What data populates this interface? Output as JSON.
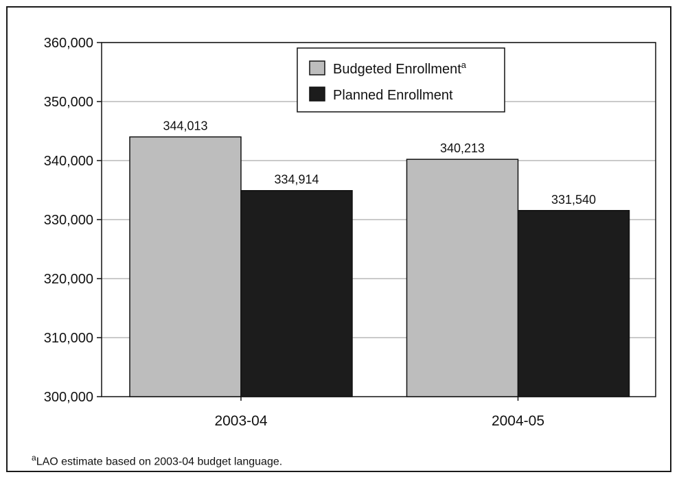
{
  "chart_data": {
    "type": "bar",
    "categories": [
      "2003-04",
      "2004-05"
    ],
    "series": [
      {
        "name": "Budgeted Enrollment",
        "name_superscript": "a",
        "values": [
          344013,
          340213
        ],
        "labels": [
          "344,013",
          "340,213"
        ],
        "color": "#bdbdbd"
      },
      {
        "name": "Planned Enrollment",
        "values": [
          334914,
          331540
        ],
        "labels": [
          "334,914",
          "331,540"
        ],
        "color": "#1c1c1c"
      }
    ],
    "ylim": [
      300000,
      360000
    ],
    "yticks": [
      300000,
      310000,
      320000,
      330000,
      340000,
      350000,
      360000
    ],
    "ytick_labels": [
      "300,000",
      "310,000",
      "320,000",
      "330,000",
      "340,000",
      "350,000",
      "360,000"
    ],
    "grid": true,
    "legend": "top-center"
  },
  "footnote": {
    "marker": "a",
    "text": "LAO estimate based on 2003-04 budget language."
  }
}
